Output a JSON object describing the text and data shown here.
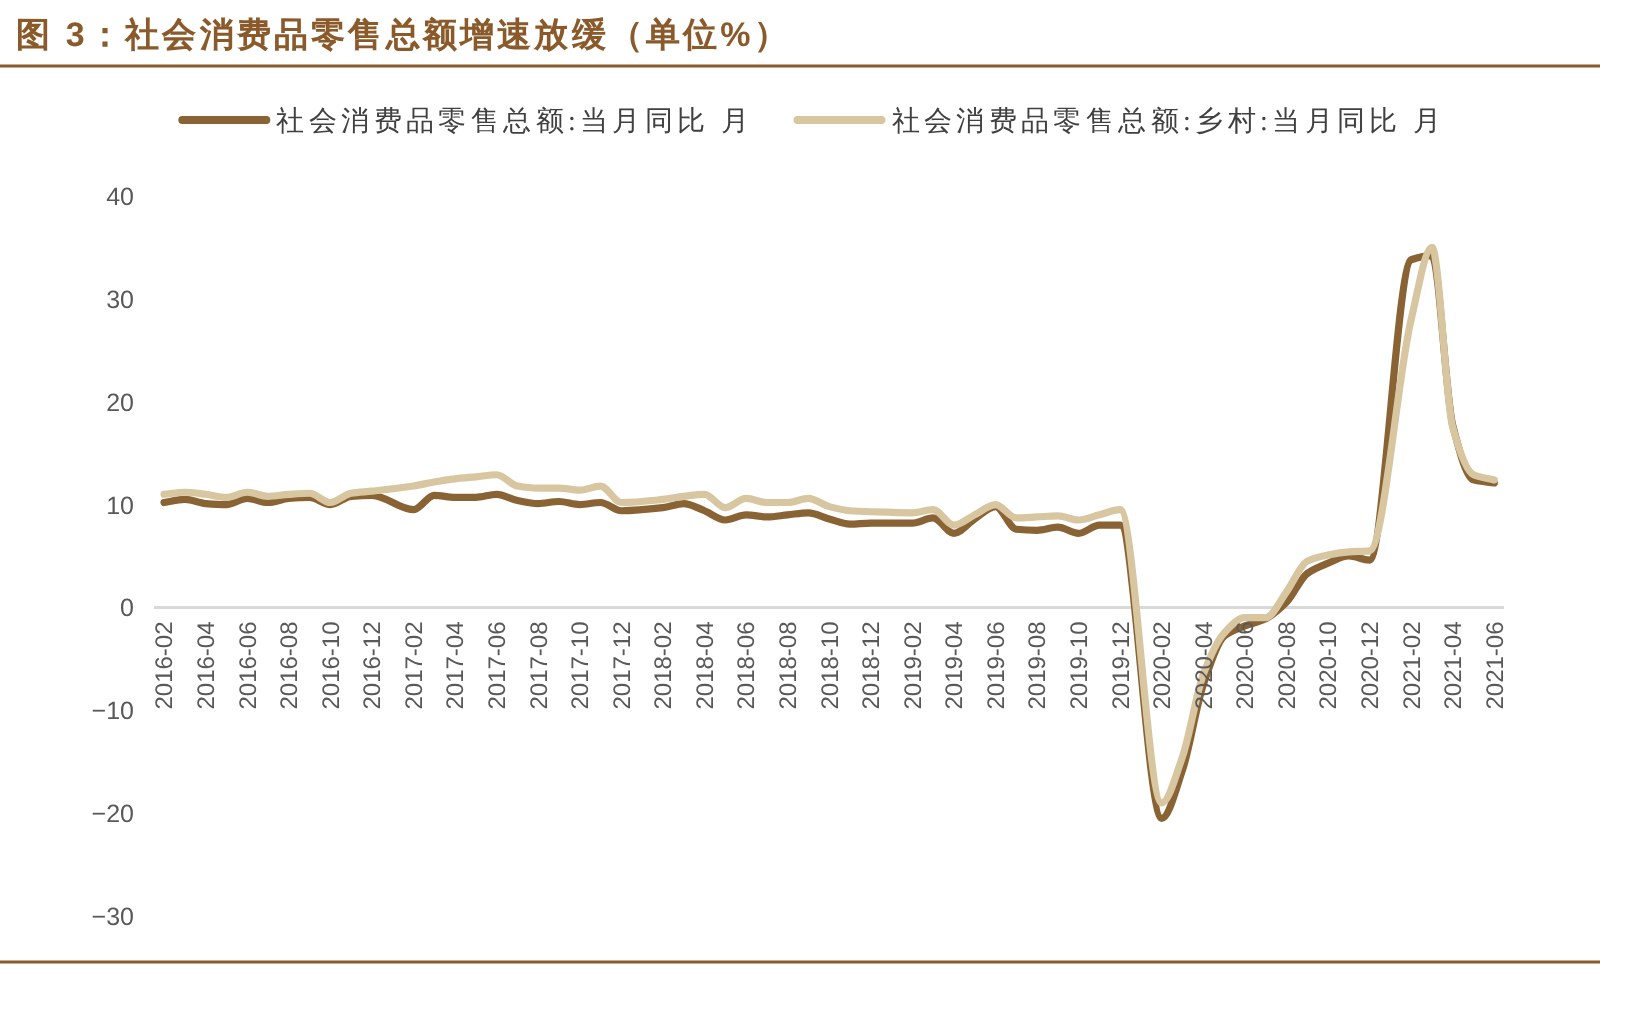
{
  "chart_data": {
    "type": "line",
    "title": "图 3：社会消费品零售总额增速放缓（单位%）",
    "x": [
      "2016-02",
      "2016-03",
      "2016-04",
      "2016-05",
      "2016-06",
      "2016-07",
      "2016-08",
      "2016-09",
      "2016-10",
      "2016-11",
      "2016-12",
      "2017-02",
      "2017-03",
      "2017-04",
      "2017-05",
      "2017-06",
      "2017-07",
      "2017-08",
      "2017-09",
      "2017-10",
      "2017-11",
      "2017-12",
      "2018-02",
      "2018-03",
      "2018-04",
      "2018-05",
      "2018-06",
      "2018-07",
      "2018-08",
      "2018-09",
      "2018-10",
      "2018-11",
      "2018-12",
      "2019-02",
      "2019-03",
      "2019-04",
      "2019-05",
      "2019-06",
      "2019-07",
      "2019-08",
      "2019-09",
      "2019-10",
      "2019-11",
      "2019-12",
      "2020-02",
      "2020-03",
      "2020-04",
      "2020-05",
      "2020-06",
      "2020-07",
      "2020-08",
      "2020-09",
      "2020-10",
      "2020-11",
      "2020-12",
      "2021-02",
      "2021-03",
      "2021-04",
      "2021-05",
      "2021-06"
    ],
    "series": [
      {
        "name": "社会消费品零售总额:当月同比 月",
        "color": "#8a6334",
        "values": [
          10.2,
          10.5,
          10.1,
          10.0,
          10.6,
          10.2,
          10.6,
          10.7,
          10.0,
          10.8,
          10.9,
          9.5,
          10.9,
          10.7,
          10.7,
          11.0,
          10.4,
          10.1,
          10.3,
          10.0,
          10.2,
          9.4,
          9.7,
          10.1,
          9.4,
          8.5,
          9.0,
          8.8,
          9.0,
          9.2,
          8.6,
          8.1,
          8.2,
          8.2,
          8.7,
          7.2,
          8.6,
          9.8,
          7.6,
          7.5,
          7.8,
          7.2,
          8.0,
          8.0,
          -20.5,
          -15.8,
          -7.5,
          -2.8,
          -1.8,
          -1.1,
          0.5,
          3.3,
          4.3,
          5.0,
          4.6,
          33.8,
          34.2,
          17.7,
          12.4,
          12.1
        ]
      },
      {
        "name": "社会消费品零售总额:乡村:当月同比 月",
        "color": "#d8c6a0",
        "values": [
          11.0,
          11.2,
          11.0,
          10.7,
          11.2,
          10.8,
          11.0,
          11.1,
          10.2,
          11.1,
          11.3,
          11.8,
          12.2,
          12.5,
          12.7,
          12.9,
          11.8,
          11.6,
          11.6,
          11.4,
          11.8,
          10.2,
          10.5,
          10.8,
          11.0,
          9.7,
          10.6,
          10.2,
          10.2,
          10.6,
          9.8,
          9.4,
          9.3,
          9.2,
          9.5,
          8.0,
          9.0,
          10.0,
          8.7,
          8.8,
          8.9,
          8.5,
          9.0,
          9.5,
          -19.0,
          -14.5,
          -6.5,
          -2.5,
          -1.0,
          -1.0,
          1.5,
          4.5,
          5.1,
          5.4,
          5.5,
          28.0,
          35.0,
          17.5,
          12.9,
          12.4
        ]
      }
    ],
    "xlim": [
      "2016-01-17",
      "2021-06-15"
    ],
    "xticks": [
      "2016-02",
      "2016-04",
      "2016-06",
      "2016-08",
      "2016-10",
      "2016-12",
      "2017-02",
      "2017-04",
      "2017-06",
      "2017-08",
      "2017-10",
      "2017-12",
      "2018-02",
      "2018-04",
      "2018-06",
      "2018-08",
      "2018-10",
      "2018-12",
      "2019-02",
      "2019-04",
      "2019-06",
      "2019-08",
      "2019-10",
      "2019-12",
      "2020-02",
      "2020-04",
      "2020-06",
      "2020-08",
      "2020-10",
      "2020-12",
      "2021-02",
      "2021-04",
      "2021-06"
    ],
    "ylim": [
      -30,
      40
    ],
    "yticks": [
      -30,
      -20,
      -10,
      0,
      10,
      20,
      30,
      40
    ],
    "legend": "top",
    "line_style": "solid"
  }
}
